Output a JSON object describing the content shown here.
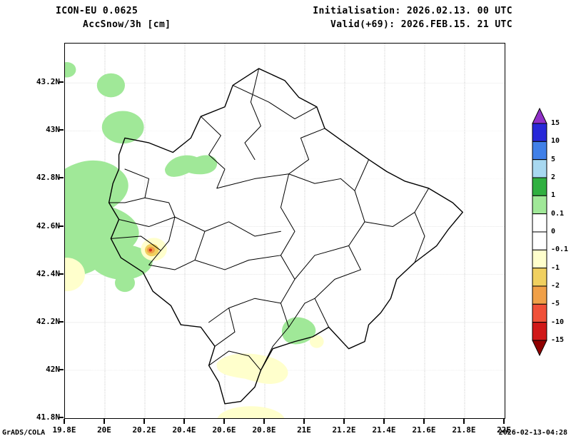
{
  "header": {
    "model_title": "ICON-EU 0.0625",
    "variable_title": "AccSnow/3h [cm]",
    "initialisation": "Initialisation: 2026.02.13. 00 UTC",
    "valid": "Valid(+69): 2026.FEB.15. 21 UTC"
  },
  "footer": {
    "credit": "GrADS/COLA",
    "created": "2026-02-13-04:28"
  },
  "axes": {
    "lat_labels": [
      "43.2N",
      "43N",
      "42.8N",
      "42.6N",
      "42.4N",
      "42.2N",
      "42N",
      "41.8N"
    ],
    "lon_labels": [
      "19.8E",
      "20E",
      "20.2E",
      "20.4E",
      "20.6E",
      "20.8E",
      "21E",
      "21.2E",
      "21.4E",
      "21.6E",
      "21.8E",
      "22E"
    ]
  },
  "legend": {
    "levels": [
      "15",
      "10",
      "5",
      "2",
      "1",
      "0.1",
      "0",
      "-0.1",
      "-1",
      "-2",
      "-5",
      "-10",
      "-15"
    ],
    "colors": [
      "#9030c8",
      "#2828d8",
      "#4080e8",
      "#a8d8f0",
      "#30b040",
      "#a0e898",
      "#ffffff",
      "#ffffff",
      "#ffffcc",
      "#f0d060",
      "#f0a048",
      "#f05038",
      "#d01818",
      "#900000"
    ]
  },
  "palette": {
    "snow_green": "#a0e898",
    "melt_pale": "#ffffcc",
    "melt_gold": "#f0d060",
    "melt_orange": "#f0a048",
    "melt_red": "#d43018"
  },
  "chart_data": {
    "type": "map",
    "title": "ICON-EU 0.0625 AccSnow/3h [cm]",
    "model": "ICON-EU",
    "grid_resolution_deg": 0.0625,
    "field": "3-hour accumulated snowfall",
    "units": "cm",
    "init_time": "2026.02.13. 00 UTC",
    "valid_time": "2026.FEB.15. 21 UTC",
    "forecast_hour": 69,
    "lon_range_deg_e": [
      19.8,
      22.0
    ],
    "lat_range_deg_n": [
      41.8,
      43.36
    ],
    "region": "Kosovo with municipality boundaries",
    "grid_on": true,
    "legend_position": "right",
    "contour_levels_cm": [
      -15,
      -10,
      -5,
      -2,
      -1,
      -0.1,
      0,
      0.1,
      1,
      2,
      5,
      10,
      15
    ],
    "shaded_features": [
      {
        "level_cm": "0.1 to 1",
        "color": "#a0e898",
        "center_lon_e": 19.81,
        "center_lat_n": 43.25,
        "note": "small patch at west map edge"
      },
      {
        "level_cm": "0.1 to 1",
        "color": "#a0e898",
        "center_lon_e": 20.03,
        "center_lat_n": 43.19,
        "note": "round patch northwest of border"
      },
      {
        "level_cm": "0.1 to 1",
        "color": "#a0e898",
        "center_lon_e": 20.09,
        "center_lat_n": 43.01,
        "note": "larger round patch"
      },
      {
        "level_cm": "0.1 to 1",
        "color": "#a0e898",
        "center_lon_e": 20.02,
        "center_lat_n": 42.63,
        "note": "large irregular area along western border 42.35N-42.9N"
      },
      {
        "level_cm": "0.1 to 1",
        "color": "#a0e898",
        "center_lon_e": 20.42,
        "center_lat_n": 42.86,
        "note": "elongated patch on northwest border"
      },
      {
        "level_cm": "0.1 to 1",
        "color": "#a0e898",
        "center_lon_e": 20.1,
        "center_lat_n": 42.36,
        "note": "small round patch"
      },
      {
        "level_cm": "0.1 to 1",
        "color": "#a0e898",
        "center_lon_e": 19.81,
        "center_lat_n": 42.57,
        "note": "tiny dot on west edge"
      },
      {
        "level_cm": "0.1 to 1",
        "color": "#a0e898",
        "center_lon_e": 20.97,
        "center_lat_n": 42.17,
        "note": "patch on southern border"
      },
      {
        "level_cm": "-0.1 to -1",
        "color": "#ffffcc",
        "center_lon_e": 19.82,
        "center_lat_n": 42.4,
        "note": "pale patch at west edge"
      },
      {
        "level_cm": "-0.1 to -1 with -1 to -2 and -2 to -5 core",
        "color": "#ffffcc",
        "center_lon_e": 20.24,
        "center_lat_n": 42.5,
        "note": "melt spot with gold and orange core"
      },
      {
        "level_cm": "-0.1 to -1",
        "color": "#ffffcc",
        "center_lon_e": 20.73,
        "center_lat_n": 41.99,
        "note": "curved band in south"
      },
      {
        "level_cm": "-0.1 to -1",
        "color": "#ffffcc",
        "center_lon_e": 20.73,
        "center_lat_n": 41.81,
        "note": "patch cut by bottom edge"
      },
      {
        "level_cm": "-0.1 to -1",
        "color": "#ffffcc",
        "center_lon_e": 21.06,
        "center_lat_n": 42.12,
        "note": "tiny patch southeast of green patch"
      }
    ]
  }
}
